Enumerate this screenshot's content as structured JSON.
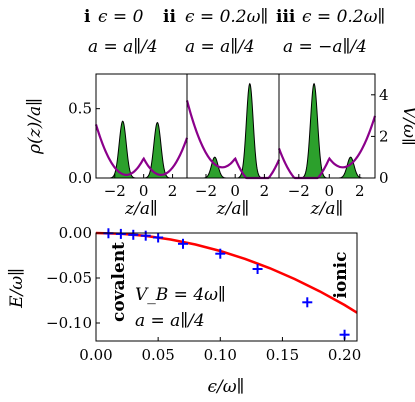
{
  "chart_data": [
    {
      "type": "area",
      "panels": [
        {
          "roman": "i",
          "eps_label": "ϵ = 0",
          "a_label": "a = a∥/4",
          "density": [
            {
              "z": -1.45,
              "peak": 0.41,
              "width": 0.38
            },
            {
              "z": 0.95,
              "peak": 0.4,
              "width": 0.38
            }
          ]
        },
        {
          "roman": "ii",
          "eps_label": "ϵ = 0.2ω∥",
          "a_label": "a = a∥/4",
          "density": [
            {
              "z": -1.4,
              "peak": 0.15,
              "width": 0.35
            },
            {
              "z": 1.0,
              "peak": 0.68,
              "width": 0.36
            }
          ]
        },
        {
          "roman": "iii",
          "eps_label": "ϵ = 0.2ω∥",
          "a_label": "a = −a∥/4",
          "density": [
            {
              "z": -1.0,
              "peak": 0.68,
              "width": 0.36
            },
            {
              "z": 1.4,
              "peak": 0.15,
              "width": 0.35
            }
          ]
        }
      ],
      "xlabel": "z/a∥",
      "ylabel": "ρ(z)/a∥",
      "y2label": "V/ω∥",
      "xlim": [
        -3.3,
        3.0
      ],
      "ylim": [
        0,
        0.75
      ],
      "y2lim": [
        0,
        5
      ],
      "xticks": [
        -2,
        0,
        2
      ],
      "yticks": [
        "0.0",
        "0.5"
      ],
      "y2ticks": [
        "0",
        "2",
        "4"
      ],
      "colors": {
        "density": "#2ca02c",
        "potential": "#8b008b"
      }
    },
    {
      "type": "scatter",
      "xlabel": "ϵ/ω∥",
      "ylabel": "E/ω∥",
      "xlim": [
        0.0,
        0.21
      ],
      "ylim": [
        -0.12,
        0.0
      ],
      "xticks": [
        "0.00",
        "0.05",
        "0.10",
        "0.15",
        "0.20"
      ],
      "yticks": [
        "0.00",
        "−0.05",
        "−0.10"
      ],
      "series": [
        {
          "type": "line",
          "color": "#ff0000",
          "x": [
            0.0,
            0.02,
            0.04,
            0.06,
            0.08,
            0.1,
            0.12,
            0.14,
            0.16,
            0.18,
            0.2,
            0.21
          ],
          "y": [
            0.0,
            -0.0008,
            -0.0032,
            -0.0072,
            -0.0128,
            -0.02,
            -0.0288,
            -0.0392,
            -0.0512,
            -0.0648,
            -0.08,
            -0.0885
          ]
        },
        {
          "type": "scatter",
          "marker": "+",
          "color": "#0000ff",
          "x": [
            0.01,
            0.02,
            0.03,
            0.04,
            0.05,
            0.07,
            0.1,
            0.13,
            0.17,
            0.2
          ],
          "y": [
            -0.0003,
            -0.001,
            -0.002,
            -0.003,
            -0.005,
            -0.012,
            -0.023,
            -0.04,
            -0.077,
            -0.113
          ]
        }
      ],
      "annotations": {
        "left": "covalent",
        "right": "ionic",
        "vb": "V_B = 4ω∥",
        "a": "a = a∥/4"
      }
    }
  ]
}
